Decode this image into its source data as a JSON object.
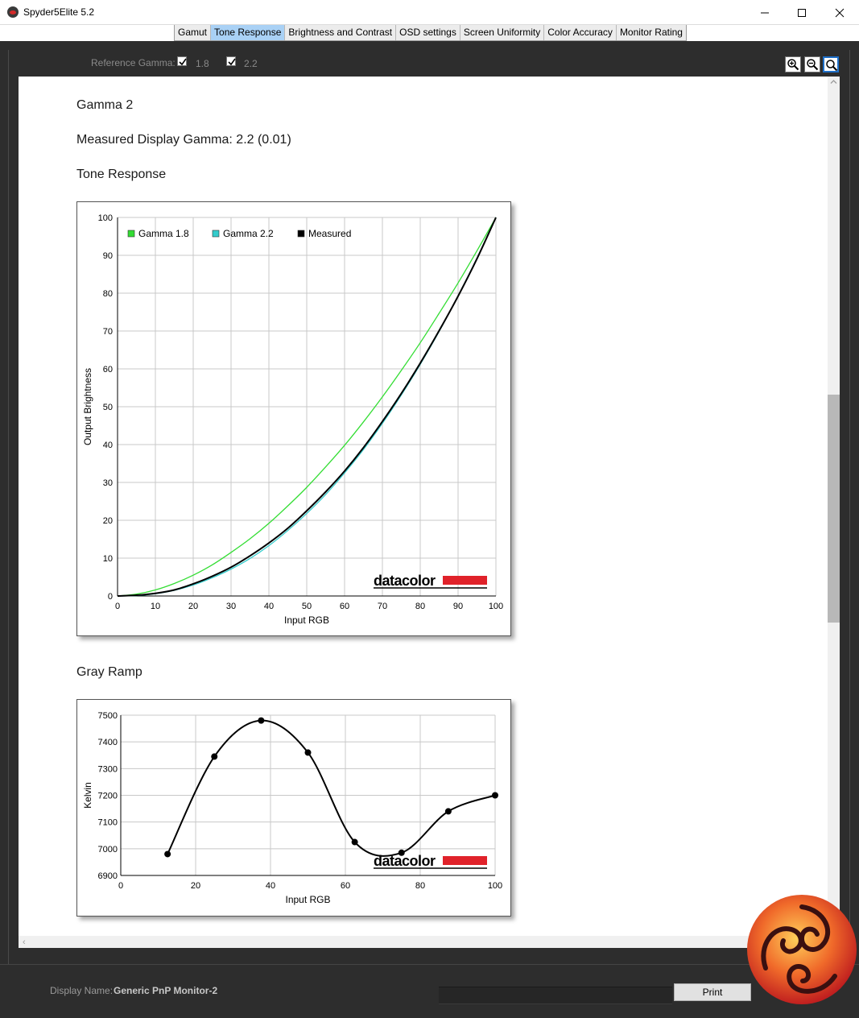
{
  "window": {
    "title": "Spyder5Elite 5.2"
  },
  "tabs": [
    {
      "label": "Gamut",
      "active": false
    },
    {
      "label": "Tone Response",
      "active": true
    },
    {
      "label": "Brightness and Contrast",
      "active": false
    },
    {
      "label": "OSD settings",
      "active": false
    },
    {
      "label": "Screen Uniformity",
      "active": false
    },
    {
      "label": "Color Accuracy",
      "active": false
    },
    {
      "label": "Monitor Rating",
      "active": false
    }
  ],
  "reference_gamma": {
    "label": "Reference Gamma:",
    "options": [
      {
        "label": "1.8",
        "checked": true
      },
      {
        "label": "2.2",
        "checked": true
      }
    ]
  },
  "content": {
    "heading_gamma": "Gamma 2",
    "heading_measured": "Measured Display Gamma: 2.2 (0.01)",
    "heading_tone": "Tone Response",
    "heading_gray": "Gray Ramp",
    "brand": "datacolor"
  },
  "chart_data": [
    {
      "type": "line",
      "title": "Tone Response",
      "xlabel": "Input RGB",
      "ylabel": "Output Brightness",
      "xlim": [
        0,
        100
      ],
      "ylim": [
        0,
        100
      ],
      "xticks": [
        0,
        10,
        20,
        30,
        40,
        50,
        60,
        70,
        80,
        90,
        100
      ],
      "yticks": [
        0,
        10,
        20,
        30,
        40,
        50,
        60,
        70,
        80,
        90,
        100
      ],
      "grid": true,
      "legend_position": "top-left",
      "x": [
        0,
        5,
        10,
        15,
        20,
        25,
        30,
        35,
        40,
        45,
        50,
        55,
        60,
        65,
        70,
        75,
        80,
        85,
        90,
        95,
        100
      ],
      "series": [
        {
          "name": "Gamma 1.8",
          "color": "#33dd33",
          "values": [
            0,
            0.5,
            1.6,
            3.3,
            5.5,
            8.2,
            11.5,
            15.1,
            19.2,
            23.8,
            28.7,
            34.1,
            39.8,
            46.0,
            52.6,
            59.6,
            66.9,
            74.7,
            82.7,
            91.2,
            100
          ]
        },
        {
          "name": "Gamma 2.2",
          "color": "#33cccc",
          "values": [
            0,
            0.1,
            0.6,
            1.5,
            2.9,
            4.8,
            7.1,
            9.9,
            13.3,
            17.3,
            21.8,
            26.8,
            32.5,
            38.7,
            45.6,
            53.1,
            61.2,
            69.9,
            79.3,
            89.3,
            100
          ]
        },
        {
          "name": "Measured",
          "color": "#000000",
          "values": [
            0,
            0.2,
            0.7,
            1.6,
            3.2,
            5.2,
            7.6,
            10.6,
            14.0,
            17.9,
            22.5,
            27.5,
            33.0,
            39.2,
            46.1,
            53.5,
            61.5,
            70.1,
            79.2,
            89.1,
            100
          ]
        }
      ]
    },
    {
      "type": "line",
      "title": "Gray Ramp",
      "xlabel": "Input RGB",
      "ylabel": "Kelvin",
      "xlim": [
        0,
        100
      ],
      "ylim": [
        6900,
        7500
      ],
      "xticks": [
        0,
        20,
        40,
        60,
        80,
        100
      ],
      "yticks": [
        6900,
        7000,
        7100,
        7200,
        7300,
        7400,
        7500
      ],
      "grid": true,
      "x": [
        12.5,
        25,
        37.5,
        50,
        62.5,
        75,
        87.5,
        100
      ],
      "series": [
        {
          "color": "#000000",
          "values": [
            6980,
            7345,
            7480,
            7360,
            7025,
            6985,
            7140,
            7200
          ]
        }
      ]
    }
  ],
  "status": {
    "display_label": "Display Name:",
    "display_value": "Generic PnP Monitor-2",
    "print_label": "Print"
  }
}
